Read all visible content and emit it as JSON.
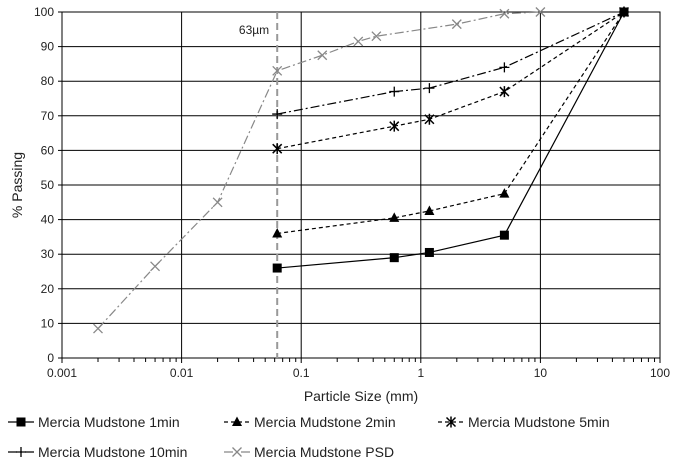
{
  "chart_data": {
    "type": "line",
    "x_scale": "log",
    "xlim": [
      0.001,
      100
    ],
    "ylim": [
      0,
      100
    ],
    "xlabel": "Particle Size (mm)",
    "ylabel": "% Passing",
    "x_ticks": [
      0.001,
      0.01,
      0.1,
      1,
      10,
      100
    ],
    "x_tick_labels": [
      "0.001",
      "0.01",
      "0.1",
      "1",
      "10",
      "100"
    ],
    "y_ticks": [
      0,
      10,
      20,
      30,
      40,
      50,
      60,
      70,
      80,
      90,
      100
    ],
    "y_tick_labels": [
      "0",
      "10",
      "20",
      "30",
      "40",
      "50",
      "60",
      "70",
      "80",
      "90",
      "100"
    ],
    "grid": true,
    "legend_position": "bottom",
    "annotation": {
      "x": 0.063,
      "label": "63µm",
      "style": "vertical dashed line",
      "color": "#999999"
    },
    "series": [
      {
        "name": "Mercia Mudstone 1min",
        "marker": "square",
        "line": "solid",
        "color": "#000000",
        "x": [
          0.063,
          0.6,
          1.18,
          5,
          50
        ],
        "y": [
          26,
          29,
          30.5,
          35.5,
          100
        ]
      },
      {
        "name": "Mercia Mudstone 2min",
        "marker": "triangle",
        "line": "dashed",
        "color": "#000000",
        "x": [
          0.063,
          0.6,
          1.18,
          5,
          50
        ],
        "y": [
          36,
          40.5,
          42.5,
          47.5,
          100
        ]
      },
      {
        "name": "Mercia Mudstone 5min",
        "marker": "asterisk",
        "line": "dashed",
        "color": "#000000",
        "x": [
          0.063,
          0.6,
          1.18,
          5,
          50
        ],
        "y": [
          60.5,
          67,
          69,
          77,
          100
        ]
      },
      {
        "name": "Mercia Mudstone 10min",
        "marker": "plus",
        "line": "dashdot",
        "color": "#000000",
        "x": [
          0.063,
          0.6,
          1.18,
          5,
          50
        ],
        "y": [
          70.5,
          77,
          78,
          84,
          100
        ]
      },
      {
        "name": "Mercia Mudstone PSD",
        "marker": "x",
        "line": "dashdot",
        "color": "#888888",
        "x": [
          0.002,
          0.006,
          0.02,
          0.063,
          0.15,
          0.3,
          0.425,
          2,
          5,
          10
        ],
        "y": [
          8.5,
          26.5,
          45,
          83,
          87.5,
          91.5,
          93,
          96.5,
          99.5,
          100
        ]
      }
    ]
  }
}
